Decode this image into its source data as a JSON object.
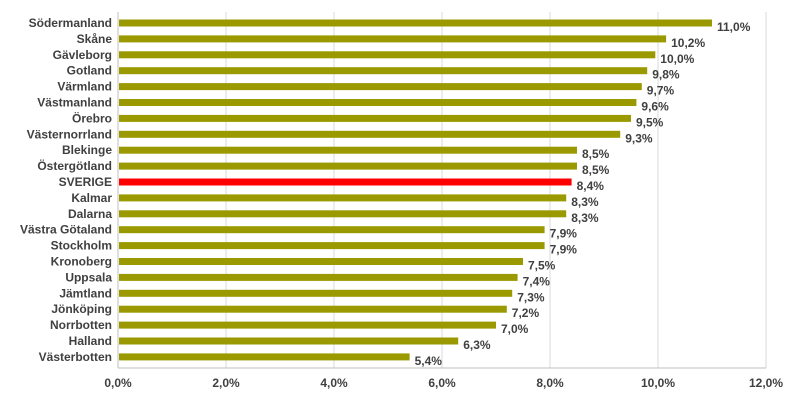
{
  "chart_data": {
    "type": "bar",
    "orientation": "horizontal",
    "title": "",
    "xlabel": "",
    "ylabel": "",
    "xlim": [
      0,
      12
    ],
    "x_ticks": [
      "0,0%",
      "2,0%",
      "4,0%",
      "6,0%",
      "8,0%",
      "10,0%",
      "12,0%"
    ],
    "grid": true,
    "colors": {
      "default": "#9a9a00",
      "highlight": "#ff0000"
    },
    "highlight": "SVERIGE",
    "categories": [
      "Södermanland",
      "Skåne",
      "Gävleborg",
      "Gotland",
      "Värmland",
      "Västmanland",
      "Örebro",
      "Västernorrland",
      "Blekinge",
      "Östergötland",
      "SVERIGE",
      "Kalmar",
      "Dalarna",
      "Västra Götaland",
      "Stockholm",
      "Kronoberg",
      "Uppsala",
      "Jämtland",
      "Jönköping",
      "Norrbotten",
      "Halland",
      "Västerbotten"
    ],
    "values": [
      11.0,
      10.15,
      9.95,
      9.8,
      9.7,
      9.6,
      9.5,
      9.3,
      8.5,
      8.5,
      8.4,
      8.3,
      8.3,
      7.9,
      7.9,
      7.5,
      7.4,
      7.3,
      7.2,
      7.0,
      6.3,
      5.4
    ],
    "value_labels": [
      "11,0%",
      "10,2%",
      "10,0%",
      "9,8%",
      "9,7%",
      "9,6%",
      "9,5%",
      "9,3%",
      "8,5%",
      "8,5%",
      "8,4%",
      "8,3%",
      "8,3%",
      "7,9%",
      "7,9%",
      "7,5%",
      "7,4%",
      "7,3%",
      "7,2%",
      "7,0%",
      "6,3%",
      "5,4%"
    ]
  }
}
